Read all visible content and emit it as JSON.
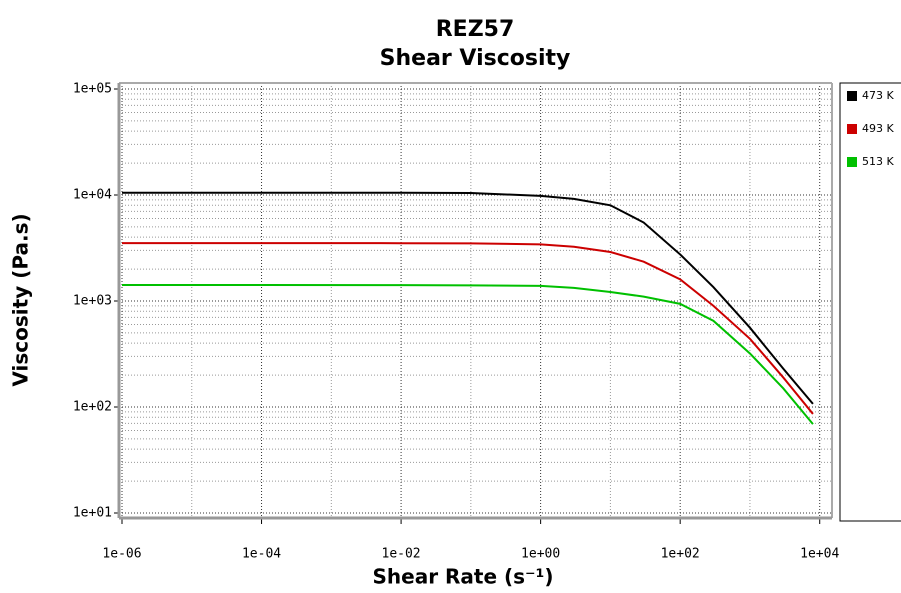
{
  "chart_data": {
    "type": "line",
    "title": "REZ57",
    "subtitle": "Shear Viscosity",
    "x_label": "Shear Rate (s⁻¹)",
    "y_label": "Viscosity (Pa.s)",
    "x": [
      1e-06,
      0.0001,
      0.01,
      0.1,
      1,
      3,
      10,
      30,
      100,
      300,
      1000,
      3000,
      8000
    ],
    "series": [
      {
        "name": "473 K",
        "color": "#000000",
        "values": [
          10500,
          10500,
          10500,
          10450,
          9800,
          9200,
          8000,
          5500,
          2750,
          1350,
          560,
          230,
          107
        ]
      },
      {
        "name": "493 K",
        "color": "#cc0000",
        "values": [
          3520,
          3520,
          3510,
          3500,
          3420,
          3250,
          2900,
          2350,
          1600,
          900,
          440,
          190,
          86
        ]
      },
      {
        "name": "513 K",
        "color": "#00c000",
        "values": [
          1415,
          1415,
          1410,
          1405,
          1390,
          1330,
          1215,
          1100,
          940,
          650,
          320,
          150,
          69
        ]
      }
    ],
    "xlim": [
      1e-06,
      15000
    ],
    "ylim": [
      10,
      100000
    ],
    "xticks": [
      {
        "value": 1e-06,
        "label": "1e-06"
      },
      {
        "value": 0.0001,
        "label": "1e-04"
      },
      {
        "value": 0.01,
        "label": "1e-02"
      },
      {
        "value": 1,
        "label": "1e+00"
      },
      {
        "value": 100,
        "label": "1e+02"
      },
      {
        "value": 10000,
        "label": "1e+04"
      }
    ],
    "yticks": [
      {
        "value": 10,
        "label": "1e+01"
      },
      {
        "value": 100,
        "label": "1e+02"
      },
      {
        "value": 1000,
        "label": "1e+03"
      },
      {
        "value": 10000,
        "label": "1e+04"
      },
      {
        "value": 100000,
        "label": "1e+05"
      }
    ],
    "xscale": "log",
    "yscale": "log",
    "grid": true,
    "minor_grid": true,
    "legend": "right"
  }
}
